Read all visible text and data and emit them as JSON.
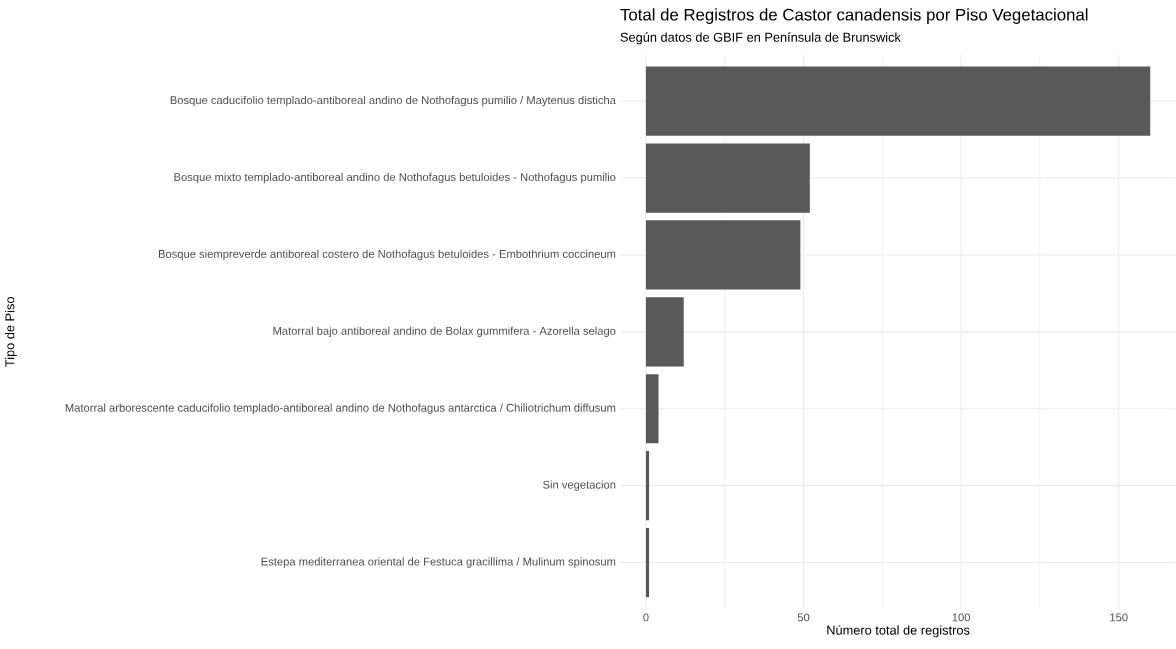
{
  "chart_data": {
    "type": "bar",
    "orientation": "horizontal",
    "title": "Total de Registros de Castor canadensis por Piso Vegetacional",
    "subtitle": "Según datos de GBIF en Península de Brunswick",
    "xlabel": "Número total de registros",
    "ylabel": "Tipo de Piso",
    "categories": [
      "Bosque caducifolio templado-antiboreal andino de Nothofagus pumilio / Maytenus disticha",
      "Bosque mixto templado-antiboreal andino de Nothofagus betuloides - Nothofagus pumilio",
      "Bosque siempreverde antiboreal costero de Nothofagus betuloides - Embothrium coccineum",
      "Matorral bajo antiboreal andino de Bolax gummifera - Azorella selago",
      "Matorral arborescente caducifolio templado-antiboreal andino de Nothofagus antarctica / Chiliotrichum diffusum",
      "Sin vegetacion",
      "Estepa mediterranea oriental de Festuca gracillima / Mulinum spinosum"
    ],
    "values": [
      160,
      52,
      49,
      12,
      4,
      1,
      1
    ],
    "color": "#595959",
    "xlim": [
      -8,
      168
    ],
    "xticks": [
      0,
      50,
      100,
      150
    ],
    "grid": true
  }
}
